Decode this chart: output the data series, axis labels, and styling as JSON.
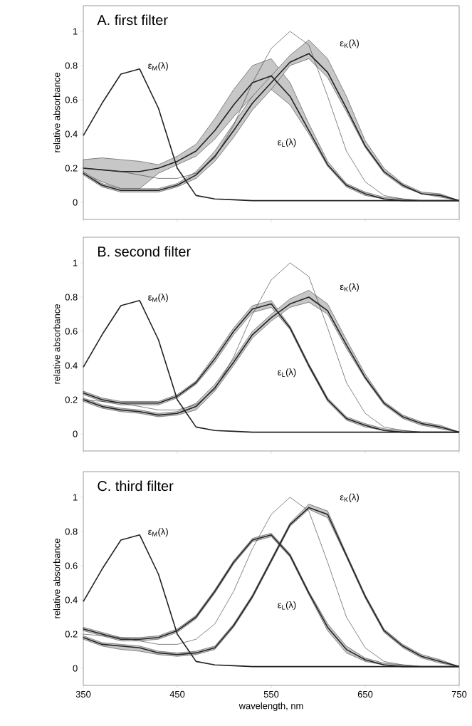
{
  "chart_data": [
    {
      "type": "line",
      "title": "A. first filter",
      "ylabel": "relative absorbance",
      "xlim": [
        350,
        750
      ],
      "ylim": [
        -0.1,
        1.15
      ],
      "xticks": [
        350,
        450,
        550,
        650,
        750
      ],
      "yticks": [
        0,
        0.2,
        0.4,
        0.6,
        0.8,
        1
      ],
      "tick_labels": "y",
      "x": [
        350,
        370,
        390,
        410,
        430,
        450,
        470,
        490,
        510,
        530,
        550,
        570,
        590,
        610,
        630,
        650,
        670,
        690,
        710,
        730,
        750
      ],
      "series": [
        {
          "name": "ε$_{M}$(λ)",
          "color": "#222222",
          "values": [
            0.39,
            0.58,
            0.75,
            0.78,
            0.55,
            0.2,
            0.04,
            0.02,
            0.015,
            0.01,
            0.01,
            0.01,
            0.01,
            0.01,
            0.01,
            0.01,
            0.01,
            0.01,
            0.01,
            0.01,
            0.01
          ]
        },
        {
          "name": "ε$_{L}$(λ)",
          "color": "#222222",
          "values": [
            0.2,
            0.19,
            0.18,
            0.18,
            0.2,
            0.24,
            0.3,
            0.42,
            0.57,
            0.7,
            0.74,
            0.62,
            0.42,
            0.22,
            0.1,
            0.05,
            0.02,
            0.01,
            0.01,
            0.01,
            0.01
          ],
          "lower": [
            0.17,
            0.12,
            0.08,
            0.08,
            0.17,
            0.22,
            0.27,
            0.37,
            0.5,
            0.62,
            0.66,
            0.57,
            0.4,
            0.21,
            0.09,
            0.04,
            0.02,
            0.01,
            0.01,
            0.01,
            0.01
          ],
          "upper": [
            0.25,
            0.26,
            0.25,
            0.24,
            0.22,
            0.27,
            0.34,
            0.49,
            0.66,
            0.8,
            0.84,
            0.7,
            0.46,
            0.24,
            0.11,
            0.06,
            0.03,
            0.02,
            0.01,
            0.01,
            0.01
          ]
        },
        {
          "name": "ε$_{K}$(λ)",
          "color": "#222222",
          "values": [
            0.17,
            0.1,
            0.07,
            0.07,
            0.07,
            0.1,
            0.16,
            0.27,
            0.42,
            0.58,
            0.7,
            0.82,
            0.87,
            0.76,
            0.55,
            0.33,
            0.18,
            0.1,
            0.05,
            0.04,
            0.01
          ],
          "lower": [
            0.16,
            0.09,
            0.06,
            0.06,
            0.06,
            0.09,
            0.14,
            0.24,
            0.38,
            0.54,
            0.66,
            0.8,
            0.84,
            0.73,
            0.53,
            0.32,
            0.17,
            0.09,
            0.05,
            0.03,
            0.01
          ],
          "upper": [
            0.18,
            0.11,
            0.08,
            0.08,
            0.08,
            0.11,
            0.18,
            0.3,
            0.46,
            0.62,
            0.74,
            0.86,
            0.95,
            0.84,
            0.62,
            0.36,
            0.2,
            0.11,
            0.06,
            0.05,
            0.01
          ]
        },
        {
          "color": "#333333",
          "values": [
            0.2,
            0.19,
            0.18,
            0.16,
            0.14,
            0.14,
            0.17,
            0.26,
            0.45,
            0.7,
            0.9,
            1.0,
            0.92,
            0.62,
            0.3,
            0.12,
            0.04,
            0.02,
            0.01,
            0.01,
            0.01
          ]
        }
      ]
    },
    {
      "type": "line",
      "title": "B. second filter",
      "ylabel": "relative absorbance",
      "xlim": [
        350,
        750
      ],
      "ylim": [
        -0.1,
        1.15
      ],
      "xticks": [
        350,
        450,
        550,
        650,
        750
      ],
      "yticks": [
        0,
        0.2,
        0.4,
        0.6,
        0.8,
        1
      ],
      "tick_labels": "y",
      "x": [
        350,
        370,
        390,
        410,
        430,
        450,
        470,
        490,
        510,
        530,
        550,
        570,
        590,
        610,
        630,
        650,
        670,
        690,
        710,
        730,
        750
      ],
      "series": [
        {
          "name": "ε$_{M}$(λ)",
          "color": "#222222",
          "values": [
            0.39,
            0.58,
            0.75,
            0.78,
            0.55,
            0.2,
            0.04,
            0.02,
            0.015,
            0.01,
            0.01,
            0.01,
            0.01,
            0.01,
            0.01,
            0.01,
            0.01,
            0.01,
            0.01,
            0.01,
            0.01
          ]
        },
        {
          "name": "ε$_{L}$(λ)",
          "color": "#222222",
          "values": [
            0.24,
            0.2,
            0.18,
            0.18,
            0.18,
            0.22,
            0.3,
            0.44,
            0.6,
            0.73,
            0.76,
            0.62,
            0.4,
            0.2,
            0.09,
            0.05,
            0.02,
            0.01,
            0.01,
            0.01,
            0.01
          ],
          "lower": [
            0.23,
            0.19,
            0.17,
            0.17,
            0.17,
            0.21,
            0.29,
            0.42,
            0.58,
            0.71,
            0.74,
            0.61,
            0.39,
            0.19,
            0.08,
            0.04,
            0.02,
            0.01,
            0.01,
            0.01,
            0.01
          ],
          "upper": [
            0.25,
            0.21,
            0.19,
            0.19,
            0.19,
            0.23,
            0.31,
            0.46,
            0.62,
            0.75,
            0.78,
            0.63,
            0.41,
            0.21,
            0.1,
            0.06,
            0.03,
            0.02,
            0.01,
            0.01,
            0.01
          ]
        },
        {
          "name": "ε$_{K}$(λ)",
          "color": "#222222",
          "values": [
            0.2,
            0.16,
            0.14,
            0.13,
            0.11,
            0.12,
            0.16,
            0.27,
            0.42,
            0.58,
            0.68,
            0.76,
            0.8,
            0.72,
            0.52,
            0.33,
            0.18,
            0.1,
            0.06,
            0.04,
            0.01
          ],
          "lower": [
            0.19,
            0.15,
            0.13,
            0.12,
            0.1,
            0.11,
            0.14,
            0.25,
            0.4,
            0.56,
            0.66,
            0.74,
            0.77,
            0.7,
            0.5,
            0.32,
            0.17,
            0.09,
            0.05,
            0.03,
            0.01
          ],
          "upper": [
            0.21,
            0.17,
            0.15,
            0.14,
            0.12,
            0.13,
            0.18,
            0.29,
            0.44,
            0.6,
            0.7,
            0.79,
            0.84,
            0.76,
            0.55,
            0.35,
            0.19,
            0.11,
            0.07,
            0.05,
            0.01
          ]
        },
        {
          "color": "#333333",
          "values": [
            0.2,
            0.19,
            0.18,
            0.16,
            0.14,
            0.14,
            0.17,
            0.26,
            0.45,
            0.7,
            0.9,
            1.0,
            0.92,
            0.62,
            0.3,
            0.12,
            0.04,
            0.02,
            0.01,
            0.01,
            0.01
          ]
        }
      ]
    },
    {
      "type": "line",
      "title": "C. third filter",
      "ylabel": "relative absorbance",
      "xlabel": "wavelength, nm",
      "xlim": [
        350,
        750
      ],
      "ylim": [
        -0.1,
        1.15
      ],
      "xticks": [
        350,
        450,
        550,
        650,
        750
      ],
      "yticks": [
        0,
        0.2,
        0.4,
        0.6,
        0.8,
        1
      ],
      "x": [
        350,
        370,
        390,
        410,
        430,
        450,
        470,
        490,
        510,
        530,
        550,
        570,
        590,
        610,
        630,
        650,
        670,
        690,
        710,
        730,
        750
      ],
      "series": [
        {
          "name": "ε$_{M}$(λ)",
          "color": "#222222",
          "values": [
            0.39,
            0.58,
            0.75,
            0.78,
            0.55,
            0.2,
            0.04,
            0.02,
            0.015,
            0.01,
            0.01,
            0.01,
            0.01,
            0.01,
            0.01,
            0.01,
            0.01,
            0.01,
            0.01,
            0.01,
            0.01
          ]
        },
        {
          "name": "ε$_{L}$(λ)",
          "color": "#222222",
          "values": [
            0.23,
            0.2,
            0.17,
            0.17,
            0.18,
            0.22,
            0.3,
            0.45,
            0.62,
            0.75,
            0.78,
            0.66,
            0.44,
            0.24,
            0.11,
            0.05,
            0.02,
            0.01,
            0.01,
            0.01,
            0.01
          ],
          "lower": [
            0.22,
            0.19,
            0.16,
            0.16,
            0.17,
            0.21,
            0.29,
            0.44,
            0.61,
            0.74,
            0.77,
            0.65,
            0.43,
            0.22,
            0.09,
            0.04,
            0.02,
            0.01,
            0.01,
            0.01,
            0.01
          ],
          "upper": [
            0.24,
            0.21,
            0.18,
            0.18,
            0.19,
            0.23,
            0.31,
            0.46,
            0.63,
            0.76,
            0.79,
            0.67,
            0.45,
            0.26,
            0.13,
            0.06,
            0.03,
            0.02,
            0.01,
            0.01,
            0.01
          ]
        },
        {
          "name": "ε$_{K}$(λ)",
          "color": "#222222",
          "values": [
            0.18,
            0.14,
            0.13,
            0.12,
            0.09,
            0.08,
            0.09,
            0.12,
            0.25,
            0.42,
            0.63,
            0.84,
            0.94,
            0.9,
            0.66,
            0.42,
            0.22,
            0.13,
            0.07,
            0.04,
            0.01
          ],
          "lower": [
            0.17,
            0.13,
            0.11,
            0.1,
            0.08,
            0.07,
            0.08,
            0.11,
            0.24,
            0.41,
            0.62,
            0.83,
            0.93,
            0.88,
            0.65,
            0.41,
            0.21,
            0.12,
            0.06,
            0.03,
            0.01
          ],
          "upper": [
            0.19,
            0.15,
            0.14,
            0.13,
            0.1,
            0.09,
            0.1,
            0.13,
            0.26,
            0.43,
            0.64,
            0.85,
            0.96,
            0.92,
            0.67,
            0.43,
            0.23,
            0.14,
            0.08,
            0.05,
            0.01
          ]
        },
        {
          "color": "#333333",
          "values": [
            0.2,
            0.19,
            0.18,
            0.16,
            0.14,
            0.14,
            0.17,
            0.26,
            0.45,
            0.7,
            0.9,
            1.0,
            0.92,
            0.62,
            0.3,
            0.12,
            0.04,
            0.02,
            0.01,
            0.01,
            0.01
          ]
        }
      ]
    }
  ]
}
